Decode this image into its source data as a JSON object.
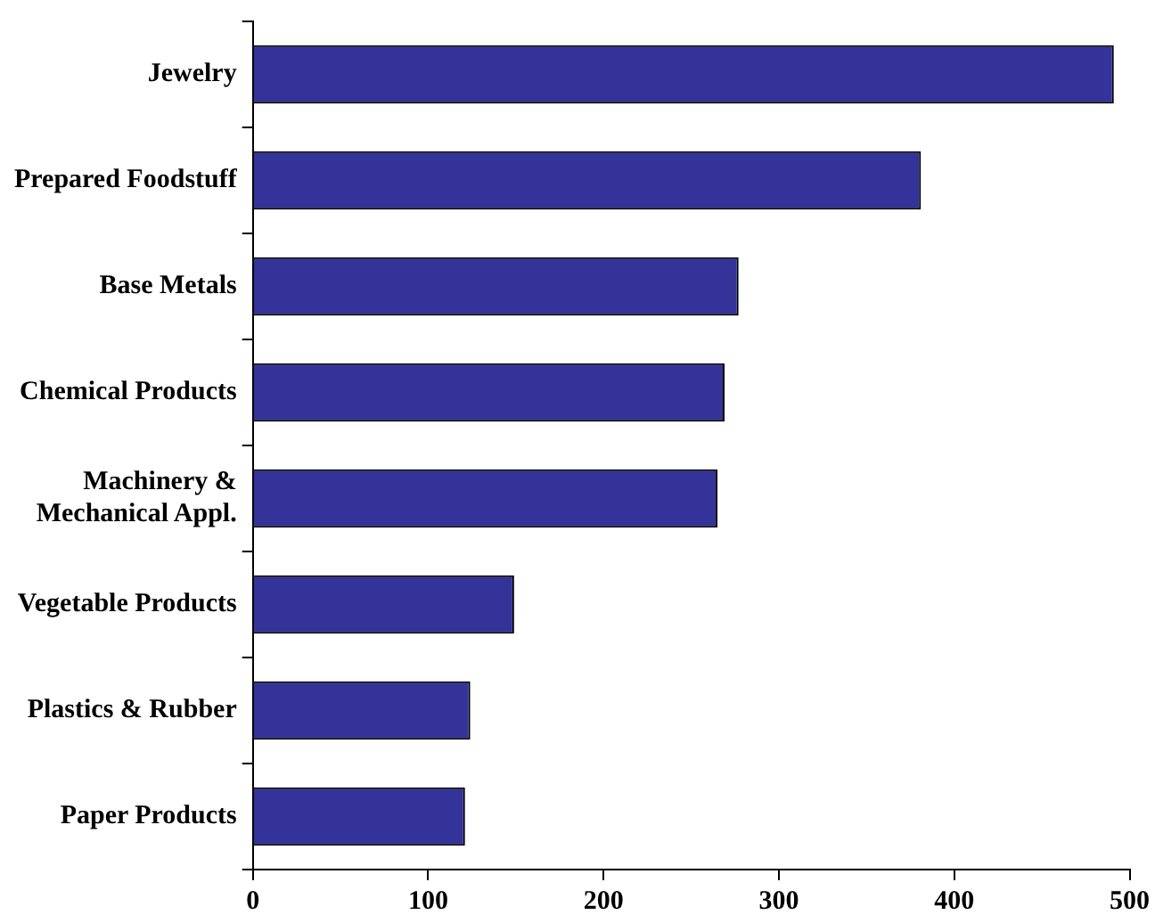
{
  "chart_data": {
    "type": "bar",
    "orientation": "horizontal",
    "categories": [
      "Jewelry",
      "Prepared Foodstuff",
      "Base Metals",
      "Chemical Products",
      "Machinery &\nMechanical Appl.",
      "Vegetable Products",
      "Plastics & Rubber",
      "Paper Products"
    ],
    "values": [
      491,
      381,
      277,
      269,
      265,
      149,
      124,
      121
    ],
    "color": "#333399",
    "xlim": [
      0,
      500
    ],
    "xticks": [
      0,
      100,
      200,
      300,
      400,
      500
    ],
    "grid": false,
    "legend": false
  }
}
